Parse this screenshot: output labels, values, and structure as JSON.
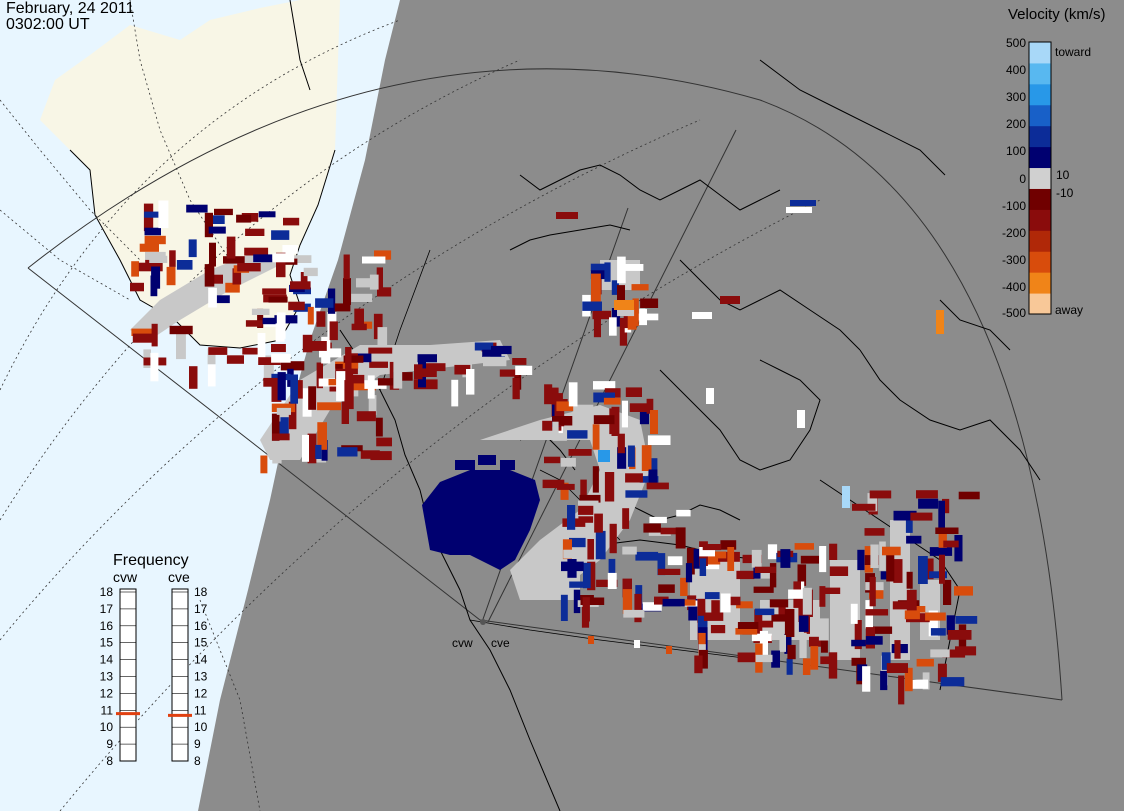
{
  "header": {
    "date": "February, 24 2011",
    "time": "0302:00 UT"
  },
  "velocity_scale": {
    "title": "Velocity (km/s)",
    "ticks": [
      "500",
      "400",
      "300",
      "200",
      "100",
      "10",
      "0",
      "-10",
      "-100",
      "-200",
      "-300",
      "-400",
      "-500"
    ],
    "toward_label": "toward",
    "away_label": "away",
    "colors": [
      "#a8d8f8",
      "#58b8f0",
      "#2898e8",
      "#1860c8",
      "#0c2c98",
      "#000070",
      "#d0d0d0",
      "#700000",
      "#8a0c0c",
      "#b02808",
      "#d84c0c",
      "#f08418",
      "#f8c898"
    ]
  },
  "frequency_panel": {
    "title": "Frequency",
    "radars": [
      {
        "name": "cvw",
        "freq_mhz": 10.8
      },
      {
        "name": "cve",
        "freq_mhz": 10.7
      }
    ],
    "ticks": [
      "18",
      "17",
      "16",
      "15",
      "14",
      "13",
      "12",
      "11",
      "10",
      "9",
      "8"
    ]
  },
  "stations": [
    {
      "name": "cvw"
    },
    {
      "name": "cve"
    }
  ],
  "colors": {
    "night": "#8c8c8c",
    "ocean_day": "#e8f6ff",
    "land_day": "#f8f6e6",
    "ground_scatter": "#c8c8c8",
    "freq_marker": "#e04010"
  }
}
